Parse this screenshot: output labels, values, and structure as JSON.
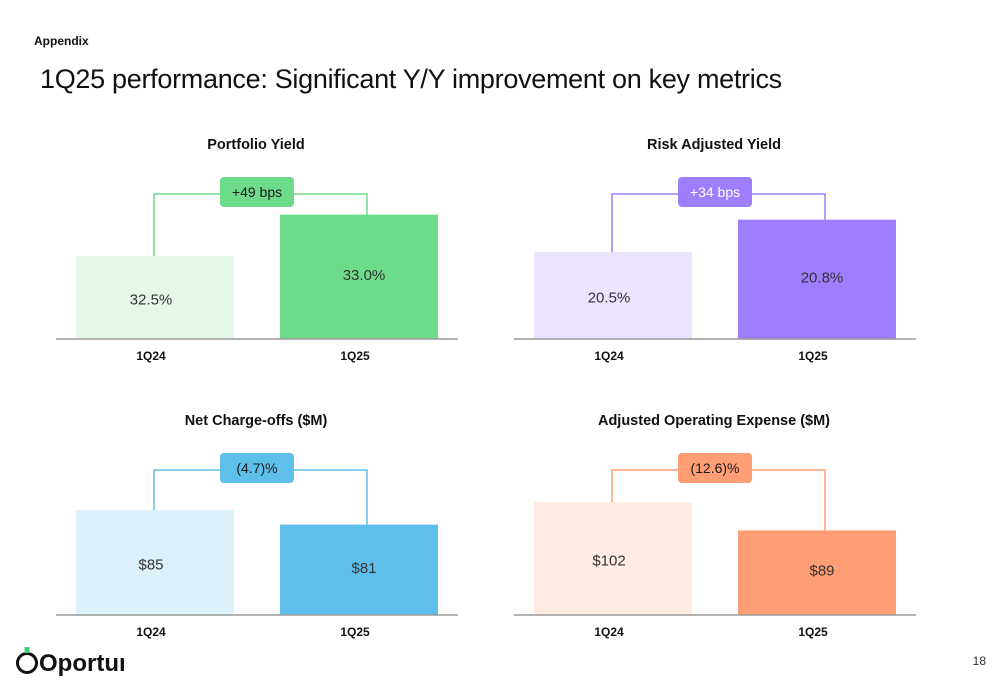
{
  "header": {
    "section": "Appendix",
    "title": "1Q25 performance: Significant Y/Y improvement on key metrics"
  },
  "footer": {
    "brand": "Oportun",
    "page_number": "18"
  },
  "colors": {
    "green": "#6EDB8A",
    "green_light": "#E3F8E9",
    "purple": "#9E7EFF",
    "purple_light": "#ECE4FF",
    "blue": "#5EC0EA",
    "blue_light": "#DDF1FA",
    "orange": "#FF9E74",
    "orange_light": "#FFEBE2",
    "axis": "#9a9a9a"
  },
  "chart_data": [
    {
      "type": "bar",
      "title": "Portfolio Yield",
      "categories": [
        "1Q24",
        "1Q25"
      ],
      "values": [
        32.5,
        33.0
      ],
      "value_labels": [
        "32.5%",
        "33.0%"
      ],
      "change_label": "+49 bps",
      "ylim": [
        31.5,
        33.2
      ],
      "color_light": "#E3F8E9",
      "color": "#6EDB8A",
      "badge_color": "#6EDB8A",
      "badge_text_color": "#1a1a1a"
    },
    {
      "type": "bar",
      "title": "Risk Adjusted Yield",
      "categories": [
        "1Q24",
        "1Q25"
      ],
      "values": [
        20.5,
        20.8
      ],
      "value_labels": [
        "20.5%",
        "20.8%"
      ],
      "change_label": "+34 bps",
      "ylim": [
        19.7,
        21.0
      ],
      "color_light": "#ECE4FF",
      "color": "#9E7EFF",
      "badge_color": "#9E7EFF",
      "badge_text_color": "#ffffff"
    },
    {
      "type": "bar",
      "title": "Net Charge-offs ($M)",
      "categories": [
        "1Q24",
        "1Q25"
      ],
      "values": [
        85,
        81
      ],
      "value_labels": [
        "$85",
        "$81"
      ],
      "change_label": "(4.7)%",
      "ylim": [
        56,
        95
      ],
      "color_light": "#DDF1FA",
      "color": "#5EC0EA",
      "badge_color": "#5EC0EA",
      "badge_text_color": "#1a1a1a"
    },
    {
      "type": "bar",
      "title": "Adjusted Operating Expense ($M)",
      "categories": [
        "1Q24",
        "1Q25"
      ],
      "values": [
        102,
        89
      ],
      "value_labels": [
        "$102",
        "$89"
      ],
      "change_label": "(12.6)%",
      "ylim": [
        50,
        115
      ],
      "color_light": "#FFEBE2",
      "color": "#FF9E74",
      "badge_color": "#FF9E74",
      "badge_text_color": "#1a1a1a"
    }
  ]
}
